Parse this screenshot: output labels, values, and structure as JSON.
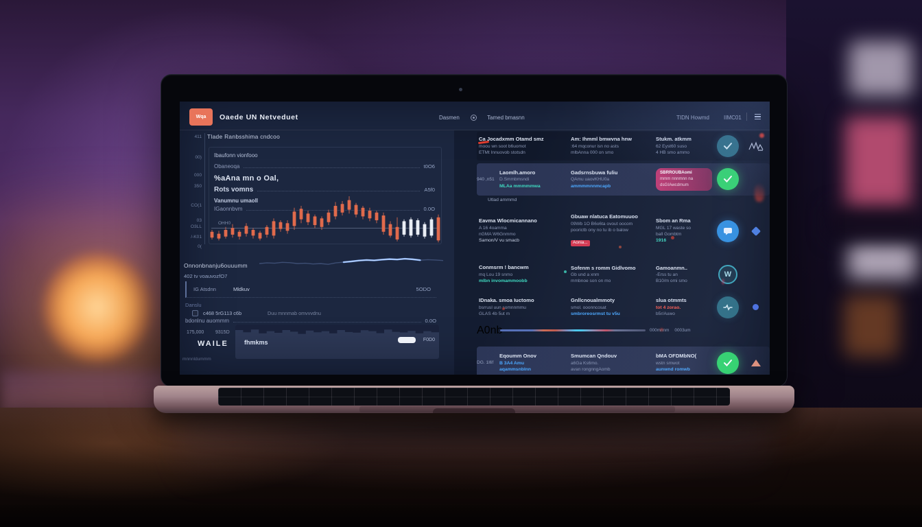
{
  "header": {
    "logo": "Wqa",
    "title": "Oaede UN Netveduet",
    "nav": [
      "Dasmen",
      "Tamed bmasnn"
    ],
    "right": [
      "TIDN Howmd",
      "IIMC01"
    ]
  },
  "axis_labels": [
    "411",
    "00)",
    "000",
    "350",
    "CO(1",
    "03",
    "O3LL",
    "/-K01",
    "0("
  ],
  "trade": {
    "section_title": "Tlade Ranbsshima cndcoo",
    "row_a": "Ibaufonn vionfooo",
    "p1": {
      "label": "Obaneoqa",
      "value": "t0O6"
    },
    "heading": "%aAna mn o Oal,",
    "p2": {
      "label": "Rots vomns",
      "value": "A5f0"
    },
    "line2a": "Vanumnu umaoll",
    "p3": {
      "label": "IGaonnbvm",
      "value": "0.0O"
    },
    "chart_tag": "OHH0",
    "spark_title": "Onnonbnanju6ouuumm",
    "spark_sub": "402 tv voauvozfO7",
    "amount": {
      "label": "IG Atsdnn",
      "label2": "Mldkuv",
      "value": "5ODO"
    },
    "danslu": "Danslu",
    "checkbox": {
      "label": "c468 5rG113 c6b",
      "hint": "Duu mnnmab omvvvdnu"
    },
    "fee": {
      "label": "bdonlnu auommm",
      "value": "0.0O"
    }
  },
  "wallet": {
    "balance_a": "175,000",
    "balance_b": "9315D",
    "label": "WAILE",
    "input": "fhmkms",
    "button": "F0D0",
    "footnote": "mnnnldummm"
  },
  "feed": {
    "rows": [
      {
        "card": false,
        "left_label": null,
        "cols": [
          {
            "lines": [
              {
                "t": "Ca Jocadxmm Otamd smz",
                "c": "w0"
              },
              {
                "t": "moou wn soot b6uomot",
                "c": "d"
              },
              {
                "t": "ETMt Innuovob stotsdn",
                "c": "d"
              }
            ]
          },
          {
            "lines": [
              {
                "t": "Am: Ihmml bmwvna hnw",
                "c": "w0"
              },
              {
                "t": ":64 mqconur isn no asts",
                "c": "d"
              },
              {
                "t": "mlbAnna 000 on smo",
                "c": "d"
              }
            ]
          },
          {
            "lines": [
              {
                "t": "Stukm. atkmm",
                "c": "w0"
              },
              {
                "t": "62 Eyst60 suso",
                "c": "d"
              },
              {
                "t": "4 HB smo ammo",
                "c": "d"
              }
            ]
          }
        ],
        "icon": {
          "name": "check-icon",
          "style": "c-teal"
        },
        "extra": "signature-icon"
      },
      {
        "card": true,
        "left_label": "940 ,n51",
        "cols": [
          {
            "lines": [
              {
                "t": "Laomlh.amoro",
                "c": "w0"
              },
              {
                "t": "D.Smmbmsndi",
                "c": "d"
              },
              {
                "t": "MLAa mmmmmwa",
                "c": "t"
              }
            ]
          },
          {
            "lines": [
              {
                "t": "Gadsrnsbuwa fuliu",
                "c": "w0"
              },
              {
                "t": "QAmu uaovKHU0a",
                "c": "d"
              },
              {
                "t": "ammmmnnmcapb",
                "c": "b"
              }
            ]
          }
        ],
        "chip": [
          "SBRROUBAomi",
          "mmm nnnmnn na",
          "dsGIAwcdmum"
        ],
        "icon": {
          "name": "check-icon",
          "style": "c-green"
        },
        "extra": null,
        "below": "Utlad ammmd"
      },
      {
        "card": false,
        "left_label": null,
        "cols": [
          {
            "lines": [
              {
                "t": "Eavma Wlocmicannano",
                "c": "w0"
              },
              {
                "t": "A 16 4oamma",
                "c": "d"
              },
              {
                "t": "nGMA W6Gnmmo",
                "c": "d"
              },
              {
                "t": "Samon/V vu smacb",
                "c": "w"
              }
            ]
          },
          {
            "lines": [
              {
                "t": "Gbuaw nlatuca Eatomuuoo",
                "c": "w0"
              },
              {
                "t": "09Wb 1O  B6o6ta ovout oocom",
                "c": "d"
              },
              {
                "t": "poorictb ony no tu ib o balow",
                "c": "d"
              },
              {
                "t": "Aonia...",
                "c": "rc"
              }
            ]
          },
          {
            "lines": [
              {
                "t": "Sbom an Rma",
                "c": "w0"
              },
              {
                "t": "MGL 17 waste so",
                "c": "d"
              },
              {
                "t": "ball  Gombtm",
                "c": "d"
              },
              {
                "t": "1916",
                "c": "t"
              }
            ]
          }
        ],
        "icon": {
          "name": "chat-icon",
          "style": "c-blue"
        },
        "extra": "diamond-icon"
      },
      {
        "card": false,
        "left_label": null,
        "cols": [
          {
            "lines": [
              {
                "t": "Conmsrm ! bancwm",
                "c": "w0"
              },
              {
                "t": "mq Lou 19 snmo",
                "c": "d"
              },
              {
                "t": "mlbn invomammoobb",
                "c": "t"
              }
            ]
          },
          {
            "lines": [
              {
                "t": "Sofenm s romm  Gidlvomo",
                "c": "w0"
              },
              {
                "t": "Gb und a xnm",
                "c": "d"
              },
              {
                "t": "mmbnoe son on mo",
                "c": "d"
              }
            ]
          },
          {
            "lines": [
              {
                "t": "Gamoanmn..",
                "c": "w0"
              },
              {
                "t": "-Erss tu an",
                "c": "d"
              },
              {
                "t": "B10/m omi smo",
                "c": "d"
              }
            ]
          }
        ],
        "icon": {
          "name": "w-icon",
          "style": "c-ring"
        },
        "extra": null
      },
      {
        "card": false,
        "left_label": null,
        "cols": [
          {
            "lines": [
              {
                "t": "IDnaka.  smoa Iuctomo",
                "c": "w0"
              },
              {
                "t": "bsrrusl uun somnnmmu",
                "c": "d"
              },
              {
                "t": "GLAS 4b 5ut m",
                "c": "d"
              }
            ]
          },
          {
            "lines": [
              {
                "t": "Gnllcnoualmmoty",
                "c": "w0"
              },
              {
                "t": "smol. ooonncosat",
                "c": "d"
              },
              {
                "t": "smbroreosrmst tu v5u",
                "c": "b"
              }
            ]
          },
          {
            "lines": [
              {
                "t": "slua otmmts",
                "c": "w0"
              },
              {
                "t": "tot 4 zorao.",
                "c": "r"
              },
              {
                "t": "b5r/Auwo",
                "c": "d"
              }
            ]
          }
        ],
        "icon": {
          "name": "pulse-icon",
          "style": "c-teal"
        },
        "extra": "dot-icon",
        "progress": {
          "label": "A0nb",
          "right_a": "000mnnm",
          "right_b": "0003um"
        }
      },
      {
        "card": true,
        "left_label": "DG. 1l6f",
        "cols": [
          {
            "lines": [
              {
                "t": "Eqoumm Onov",
                "c": "w0"
              },
              {
                "t": "B 3A4 Amu",
                "c": "b"
              },
              {
                "t": "aqammsnblnn",
                "c": "b"
              }
            ]
          },
          {
            "lines": [
              {
                "t": "Smumcan Qndouv",
                "c": "w0"
              },
              {
                "t": "a6Ga  Ks6mo.",
                "c": "d"
              },
              {
                "t": "avan rongnngAomb",
                "c": "d"
              }
            ]
          },
          {
            "lines": [
              {
                "t": "bMA OFDMbNO(",
                "c": "w0"
              },
              {
                "t": "wstn smwot",
                "c": "d"
              },
              {
                "t": "aunwnd romwb",
                "c": "b"
              }
            ]
          }
        ],
        "icon": {
          "name": "check-icon",
          "style": "c-green"
        },
        "extra": "triangle-icon"
      }
    ]
  },
  "colors": {
    "orange": "#e8745a",
    "candle": "#e06a4c",
    "candle_white": "#e9edf4",
    "green": "#31d56c",
    "spark": "#8ab6ff",
    "pink_chip": "#c23a72",
    "red": "#ff5a4e"
  },
  "chart_data": [
    {
      "type": "candlestick",
      "title": "price chart",
      "baseline_value": 40,
      "candles": [
        [
          10,
          14,
          26,
          30,
          "o"
        ],
        [
          8,
          12,
          22,
          28,
          "o"
        ],
        [
          12,
          16,
          30,
          36,
          "o"
        ],
        [
          14,
          20,
          34,
          42,
          "o"
        ],
        [
          10,
          16,
          26,
          30,
          "o"
        ],
        [
          16,
          22,
          38,
          44,
          "o"
        ],
        [
          12,
          18,
          30,
          34,
          "o"
        ],
        [
          8,
          12,
          24,
          28,
          "o"
        ],
        [
          14,
          20,
          36,
          40,
          "o"
        ],
        [
          12,
          18,
          48,
          54,
          "o"
        ],
        [
          26,
          32,
          46,
          50,
          "o"
        ],
        [
          22,
          28,
          44,
          50,
          "o"
        ],
        [
          30,
          38,
          68,
          76,
          "o"
        ],
        [
          44,
          52,
          74,
          80,
          "o"
        ],
        [
          40,
          46,
          64,
          70,
          "o"
        ],
        [
          34,
          40,
          58,
          62,
          "o"
        ],
        [
          30,
          36,
          54,
          58,
          "o"
        ],
        [
          40,
          46,
          66,
          72,
          "o"
        ],
        [
          52,
          58,
          80,
          88,
          "o"
        ],
        [
          60,
          66,
          84,
          90,
          "o"
        ],
        [
          64,
          72,
          92,
          100,
          "o"
        ],
        [
          56,
          62,
          82,
          86,
          "o"
        ],
        [
          52,
          58,
          76,
          80,
          "o"
        ],
        [
          48,
          54,
          70,
          76,
          "o"
        ],
        [
          44,
          50,
          66,
          70,
          "o"
        ],
        [
          20,
          26,
          60,
          66,
          "o"
        ],
        [
          14,
          18,
          42,
          48,
          "o"
        ],
        [
          6,
          10,
          36,
          56,
          "o"
        ],
        [
          16,
          20,
          48,
          52,
          "w"
        ],
        [
          14,
          18,
          52,
          56,
          "w"
        ],
        [
          16,
          20,
          50,
          54,
          "w"
        ],
        [
          12,
          16,
          42,
          46,
          "w"
        ],
        [
          14,
          18,
          52,
          56,
          "w"
        ],
        [
          4,
          8,
          56,
          62,
          "o"
        ]
      ]
    },
    {
      "type": "line",
      "title": "sparkline",
      "y": [
        38,
        42,
        40,
        45,
        43,
        38,
        40,
        36,
        38,
        34,
        42,
        46,
        50,
        55,
        58,
        56,
        60,
        63,
        61,
        65,
        62,
        57,
        60,
        58,
        55
      ],
      "bright_from": 11,
      "bright_to": 21
    },
    {
      "type": "bar",
      "title": "wallet histogram silhouette",
      "values": [
        0.5,
        0.7,
        0.45,
        0.8,
        0.6,
        0.75,
        0.5,
        0.65,
        0.85,
        0.55,
        0.7,
        0.6,
        0.8,
        0.5,
        0.68,
        0.74,
        0.52,
        0.6,
        0.78,
        0.45,
        0.66,
        0.72,
        0.58,
        0.8,
        0.6,
        0.7
      ]
    }
  ]
}
